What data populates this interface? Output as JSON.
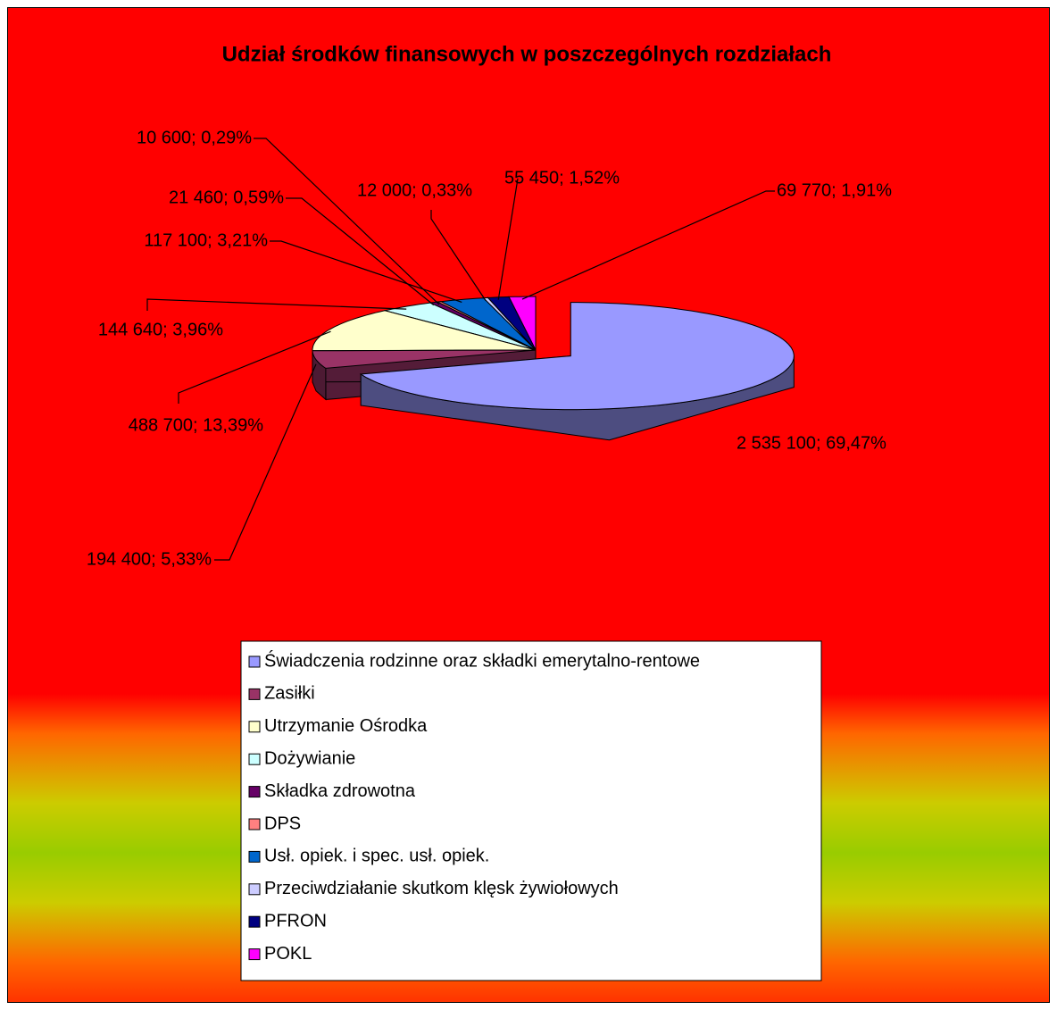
{
  "chart_data": {
    "type": "pie",
    "title": "Udział środków finansowych w poszczególnych rozdziałach",
    "categories": [
      "Świadczenia rodzinne oraz składki emerytalno-rentowe",
      "Zasiłki",
      "Utrzymanie Ośrodka",
      "Dożywianie",
      "Składka zdrowotna",
      "DPS",
      "Usł. opiek. i spec. usł. opiek.",
      "Przeciwdziałanie skutkom klęsk żywiołowych",
      "PFRON",
      "POKL"
    ],
    "values": [
      2535100,
      194400,
      488700,
      144640,
      21460,
      10600,
      117100,
      12000,
      55450,
      69770
    ],
    "value_labels": [
      "2 535 100; 69,47%",
      "194 400; 5,33%",
      "488 700; 13,39%",
      "144 640; 3,96%",
      "21 460; 0,59%",
      "10 600; 0,29%",
      "117 100; 3,21%",
      "12 000; 0,33%",
      "55 450; 1,52%",
      "69 770; 1,91%"
    ],
    "colors": [
      "#9999ff",
      "#993366",
      "#ffffcc",
      "#ccffff",
      "#660066",
      "#ff8080",
      "#0066cc",
      "#ccccff",
      "#000080",
      "#ff00ff"
    ],
    "legend": "bottom"
  }
}
